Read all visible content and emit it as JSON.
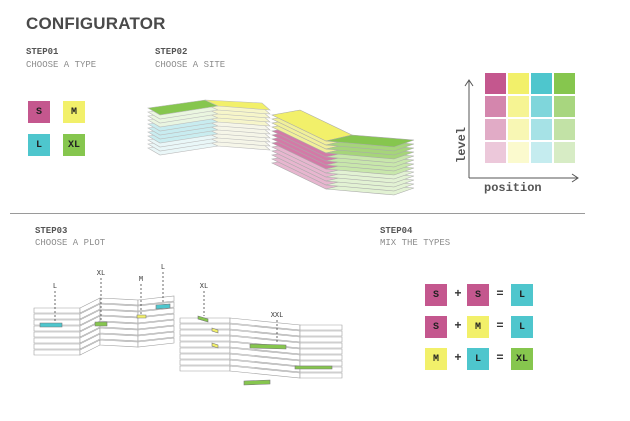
{
  "page": {
    "title": "CONFIGURATOR"
  },
  "steps": [
    {
      "id": "step01",
      "title": "STEP01",
      "subtitle": "CHOOSE A TYPE"
    },
    {
      "id": "step02",
      "title": "STEP02",
      "subtitle": "CHOOSE A SITE"
    },
    {
      "id": "step03",
      "title": "STEP03",
      "subtitle": "CHOOSE A PLOT"
    },
    {
      "id": "step04",
      "title": "STEP04",
      "subtitle": "MIX THE TYPES"
    }
  ],
  "colors": {
    "S": "#c4578e",
    "M": "#f2f06a",
    "L": "#4ec6cd",
    "XL": "#86c64e",
    "XXL": "#86c64e"
  },
  "types": [
    {
      "label": "S",
      "color": "#c4578e"
    },
    {
      "label": "M",
      "color": "#f2f06a"
    },
    {
      "label": "L",
      "color": "#4ec6cd"
    },
    {
      "label": "XL",
      "color": "#86c64e"
    }
  ],
  "matrix": {
    "y_axis_label": "level",
    "x_axis_label": "position",
    "columns": [
      "#c4578e",
      "#f2f06a",
      "#4ec6cd",
      "#86c64e"
    ],
    "row_strength": [
      1.0,
      0.72,
      0.5,
      0.33
    ]
  },
  "plot_labels": [
    "L",
    "XL",
    "M",
    "L",
    "XL",
    "XXL"
  ],
  "mix_rules": [
    {
      "a": "S",
      "b": "S",
      "result": "L",
      "plus": "+",
      "equals": "="
    },
    {
      "a": "S",
      "b": "M",
      "result": "L",
      "plus": "+",
      "equals": "="
    },
    {
      "a": "M",
      "b": "L",
      "result": "XL",
      "plus": "+",
      "equals": "="
    }
  ]
}
